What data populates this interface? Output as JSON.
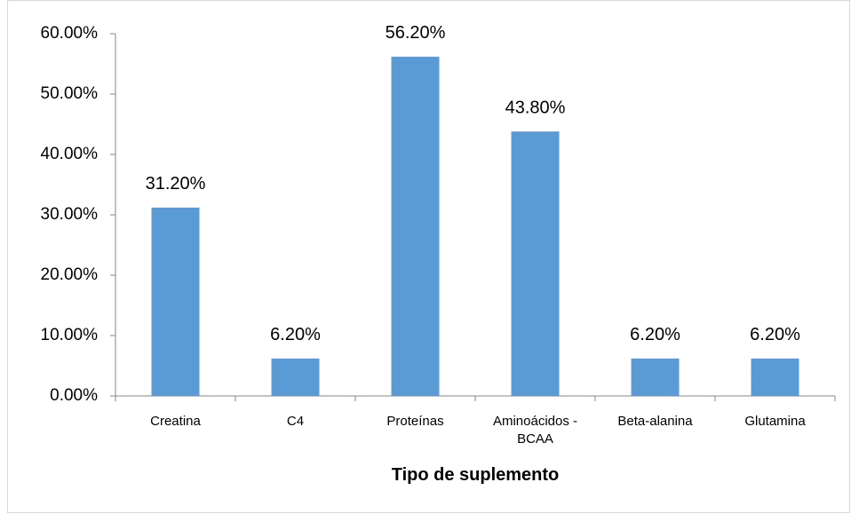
{
  "chart_data": {
    "type": "bar",
    "x_label": "Tipo de suplemento",
    "categories": [
      "Creatina",
      "C4",
      "Proteínas",
      "Aminoácidos - BCAA",
      "Beta-alanina",
      "Glutamina"
    ],
    "values": [
      31.2,
      6.2,
      56.2,
      43.8,
      6.2,
      6.2
    ],
    "value_labels": [
      "31.20%",
      "6.20%",
      "56.20%",
      "43.80%",
      "6.20%",
      "6.20%"
    ],
    "color": "#5b9bd5",
    "ylim": [
      0,
      60
    ],
    "yticks": [
      {
        "value": 0,
        "label": "0.00%"
      },
      {
        "value": 10,
        "label": "10.00%"
      },
      {
        "value": 20,
        "label": "20.00%"
      },
      {
        "value": 30,
        "label": "30.00%"
      },
      {
        "value": 40,
        "label": "40.00%"
      },
      {
        "value": 50,
        "label": "50.00%"
      },
      {
        "value": 60,
        "label": "60.00%"
      }
    ],
    "grid": false
  }
}
